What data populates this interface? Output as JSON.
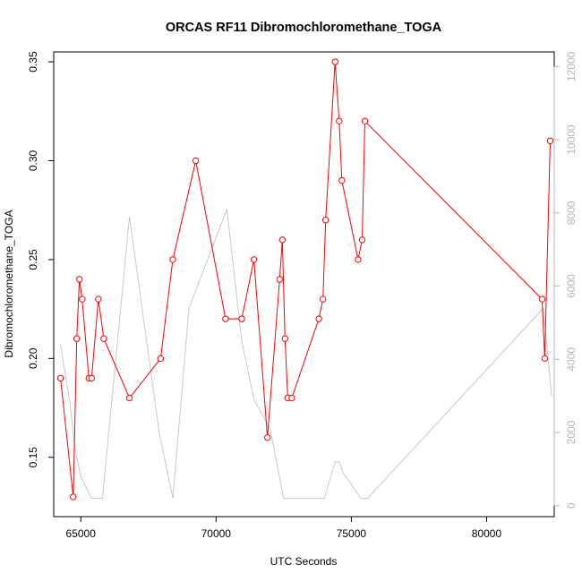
{
  "chart_data": {
    "type": "line",
    "title": "ORCAS RF11 Dibromochloromethane_TOGA",
    "xlabel": "UTC Seconds",
    "ylabel": "Dibromochloromethane_TOGA",
    "xlim": [
      64000,
      82500
    ],
    "ylim": [
      0.12,
      0.355
    ],
    "y2lim": [
      -300,
      12400
    ],
    "x_ticks": [
      65000,
      70000,
      75000,
      80000
    ],
    "y_ticks": [
      0.15,
      0.2,
      0.25,
      0.3,
      0.35
    ],
    "y2_ticks": [
      0,
      2000,
      4000,
      6000,
      8000,
      10000,
      12000
    ],
    "x_tick_labels": [
      "65000",
      "70000",
      "75000",
      "80000"
    ],
    "y_tick_labels": [
      "0.15",
      "0.20",
      "0.25",
      "0.30",
      "0.35"
    ],
    "y2_tick_labels": [
      "0",
      "2000",
      "4000",
      "6000",
      "8000",
      "10000",
      "12000"
    ],
    "grid": false,
    "series": [
      {
        "axis": "left",
        "color": "#ff0000",
        "marker": "open-circle",
        "x": [
          64250,
          64720,
          64850,
          64950,
          65050,
          65300,
          65400,
          65650,
          65850,
          66800,
          67950,
          68400,
          69250,
          70350,
          70950,
          71400,
          71900,
          72350,
          72450,
          72550,
          72650,
          72800,
          73800,
          73950,
          74050,
          74400,
          74550,
          74650,
          75250,
          75400,
          75500,
          82050,
          82150,
          82350
        ],
        "y": [
          0.19,
          0.13,
          0.21,
          0.24,
          0.23,
          0.19,
          0.19,
          0.23,
          0.21,
          0.18,
          0.2,
          0.25,
          0.3,
          0.22,
          0.22,
          0.25,
          0.16,
          0.24,
          0.26,
          0.21,
          0.18,
          0.18,
          0.22,
          0.23,
          0.27,
          0.35,
          0.32,
          0.29,
          0.25,
          0.26,
          0.32,
          0.23,
          0.2,
          0.31
        ]
      },
      {
        "axis": "right",
        "color": "#c8c8c8",
        "marker": "none",
        "x": [
          64250,
          64600,
          64800,
          65000,
          65400,
          65800,
          66800,
          67900,
          68400,
          69000,
          70400,
          70950,
          71400,
          72000,
          72500,
          73000,
          73600,
          74000,
          74400,
          74550,
          74700,
          75350,
          75600,
          82100,
          82400
        ],
        "y": [
          4400,
          2800,
          1500,
          800,
          200,
          200,
          7900,
          2000,
          200,
          5400,
          8100,
          4500,
          2900,
          2100,
          200,
          200,
          200,
          200,
          1200,
          1200,
          900,
          200,
          200,
          5400,
          3000
        ]
      }
    ]
  }
}
